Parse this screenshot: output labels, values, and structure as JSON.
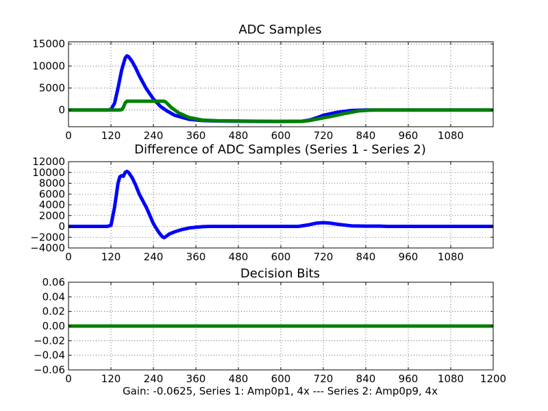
{
  "footer": "Gain: -0.0625, Series 1: Amp0p1, 4x --- Series 2: Amp0p9, 4x",
  "colors": {
    "series1": "#0000ff",
    "series2": "#008000"
  },
  "chart_data": [
    {
      "type": "line",
      "title": "ADC Samples",
      "xlim": [
        0,
        1200
      ],
      "ylim": [
        -3800,
        15500
      ],
      "grid": true,
      "xticks": [
        0,
        120,
        240,
        360,
        480,
        600,
        720,
        840,
        960,
        1080
      ],
      "yticks": [
        0,
        5000,
        10000,
        15000
      ],
      "xtick_labels": [
        "0",
        "120",
        "240",
        "360",
        "480",
        "600",
        "720",
        "840",
        "960",
        "1080"
      ],
      "ytick_labels": [
        "0",
        "5000",
        "10000",
        "15000"
      ],
      "series": [
        {
          "color": "#0000ff",
          "x": [
            0,
            110,
            120,
            130,
            140,
            150,
            160,
            165,
            170,
            180,
            190,
            200,
            220,
            240,
            260,
            280,
            300,
            340,
            380,
            420,
            480,
            540,
            600,
            660,
            680,
            700,
            720,
            760,
            800,
            840,
            880,
            960,
            1080,
            1200
          ],
          "y": [
            0,
            0,
            100,
            1500,
            5000,
            9000,
            11800,
            12300,
            12100,
            11000,
            9500,
            7800,
            4800,
            2500,
            800,
            -300,
            -1200,
            -2100,
            -2400,
            -2500,
            -2550,
            -2600,
            -2600,
            -2550,
            -2300,
            -1800,
            -1200,
            -500,
            -100,
            0,
            0,
            0,
            0,
            0
          ]
        },
        {
          "color": "#008000",
          "x": [
            0,
            140,
            150,
            155,
            160,
            165,
            180,
            200,
            240,
            260,
            270,
            275,
            290,
            310,
            340,
            380,
            420,
            480,
            540,
            600,
            660,
            680,
            700,
            740,
            780,
            820,
            860,
            900,
            960,
            1080,
            1200
          ],
          "y": [
            0,
            0,
            50,
            600,
            1600,
            2000,
            2000,
            2000,
            2000,
            2000,
            2000,
            1800,
            600,
            -600,
            -1700,
            -2300,
            -2450,
            -2500,
            -2550,
            -2600,
            -2600,
            -2400,
            -2100,
            -1500,
            -800,
            -200,
            0,
            0,
            0,
            0,
            0
          ]
        }
      ]
    },
    {
      "type": "line",
      "title": "Difference of ADC Samples (Series 1 - Series 2)",
      "xlim": [
        0,
        1200
      ],
      "ylim": [
        -4000,
        12000
      ],
      "grid": true,
      "xticks": [
        0,
        120,
        240,
        360,
        480,
        600,
        720,
        840,
        960,
        1080
      ],
      "yticks": [
        -4000,
        -2000,
        0,
        2000,
        4000,
        6000,
        8000,
        10000,
        12000
      ],
      "xtick_labels": [
        "0",
        "120",
        "240",
        "360",
        "480",
        "600",
        "720",
        "840",
        "960",
        "1080"
      ],
      "ytick_labels": [
        "−4000",
        "−2000",
        "0",
        "2000",
        "4000",
        "6000",
        "8000",
        "10000",
        "12000"
      ],
      "series": [
        {
          "color": "#0000ff",
          "x": [
            0,
            110,
            120,
            130,
            140,
            145,
            150,
            155,
            160,
            165,
            170,
            180,
            190,
            200,
            220,
            240,
            255,
            265,
            270,
            275,
            285,
            300,
            320,
            340,
            360,
            380,
            400,
            480,
            600,
            650,
            680,
            700,
            720,
            740,
            760,
            800,
            840,
            880,
            900,
            960,
            1080,
            1200
          ],
          "y": [
            0,
            0,
            200,
            3500,
            8000,
            9200,
            9400,
            9300,
            10000,
            10200,
            10000,
            9000,
            7600,
            6000,
            3500,
            500,
            -1100,
            -1900,
            -2100,
            -1900,
            -1400,
            -1000,
            -600,
            -300,
            -150,
            -50,
            0,
            0,
            0,
            0,
            300,
            600,
            700,
            600,
            400,
            100,
            50,
            50,
            0,
            0,
            0,
            0
          ]
        }
      ]
    },
    {
      "type": "line",
      "title": "Decision Bits",
      "xlim": [
        0,
        1200
      ],
      "ylim": [
        -0.06,
        0.06
      ],
      "grid": true,
      "xticks": [
        0,
        120,
        240,
        360,
        480,
        600,
        720,
        840,
        960,
        1080,
        1200
      ],
      "yticks": [
        -0.06,
        -0.04,
        -0.02,
        0.0,
        0.02,
        0.04,
        0.06
      ],
      "xtick_labels": [
        "0",
        "120",
        "240",
        "360",
        "480",
        "600",
        "720",
        "840",
        "960",
        "1080",
        "1200"
      ],
      "ytick_labels": [
        "−0.06",
        "−0.04",
        "−0.02",
        "0.00",
        "0.02",
        "0.04",
        "0.06"
      ],
      "series": [
        {
          "color": "#0000ff",
          "x": [
            0,
            1200
          ],
          "y": [
            0,
            0
          ]
        },
        {
          "color": "#008000",
          "x": [
            0,
            1200
          ],
          "y": [
            0,
            0
          ]
        }
      ]
    }
  ]
}
